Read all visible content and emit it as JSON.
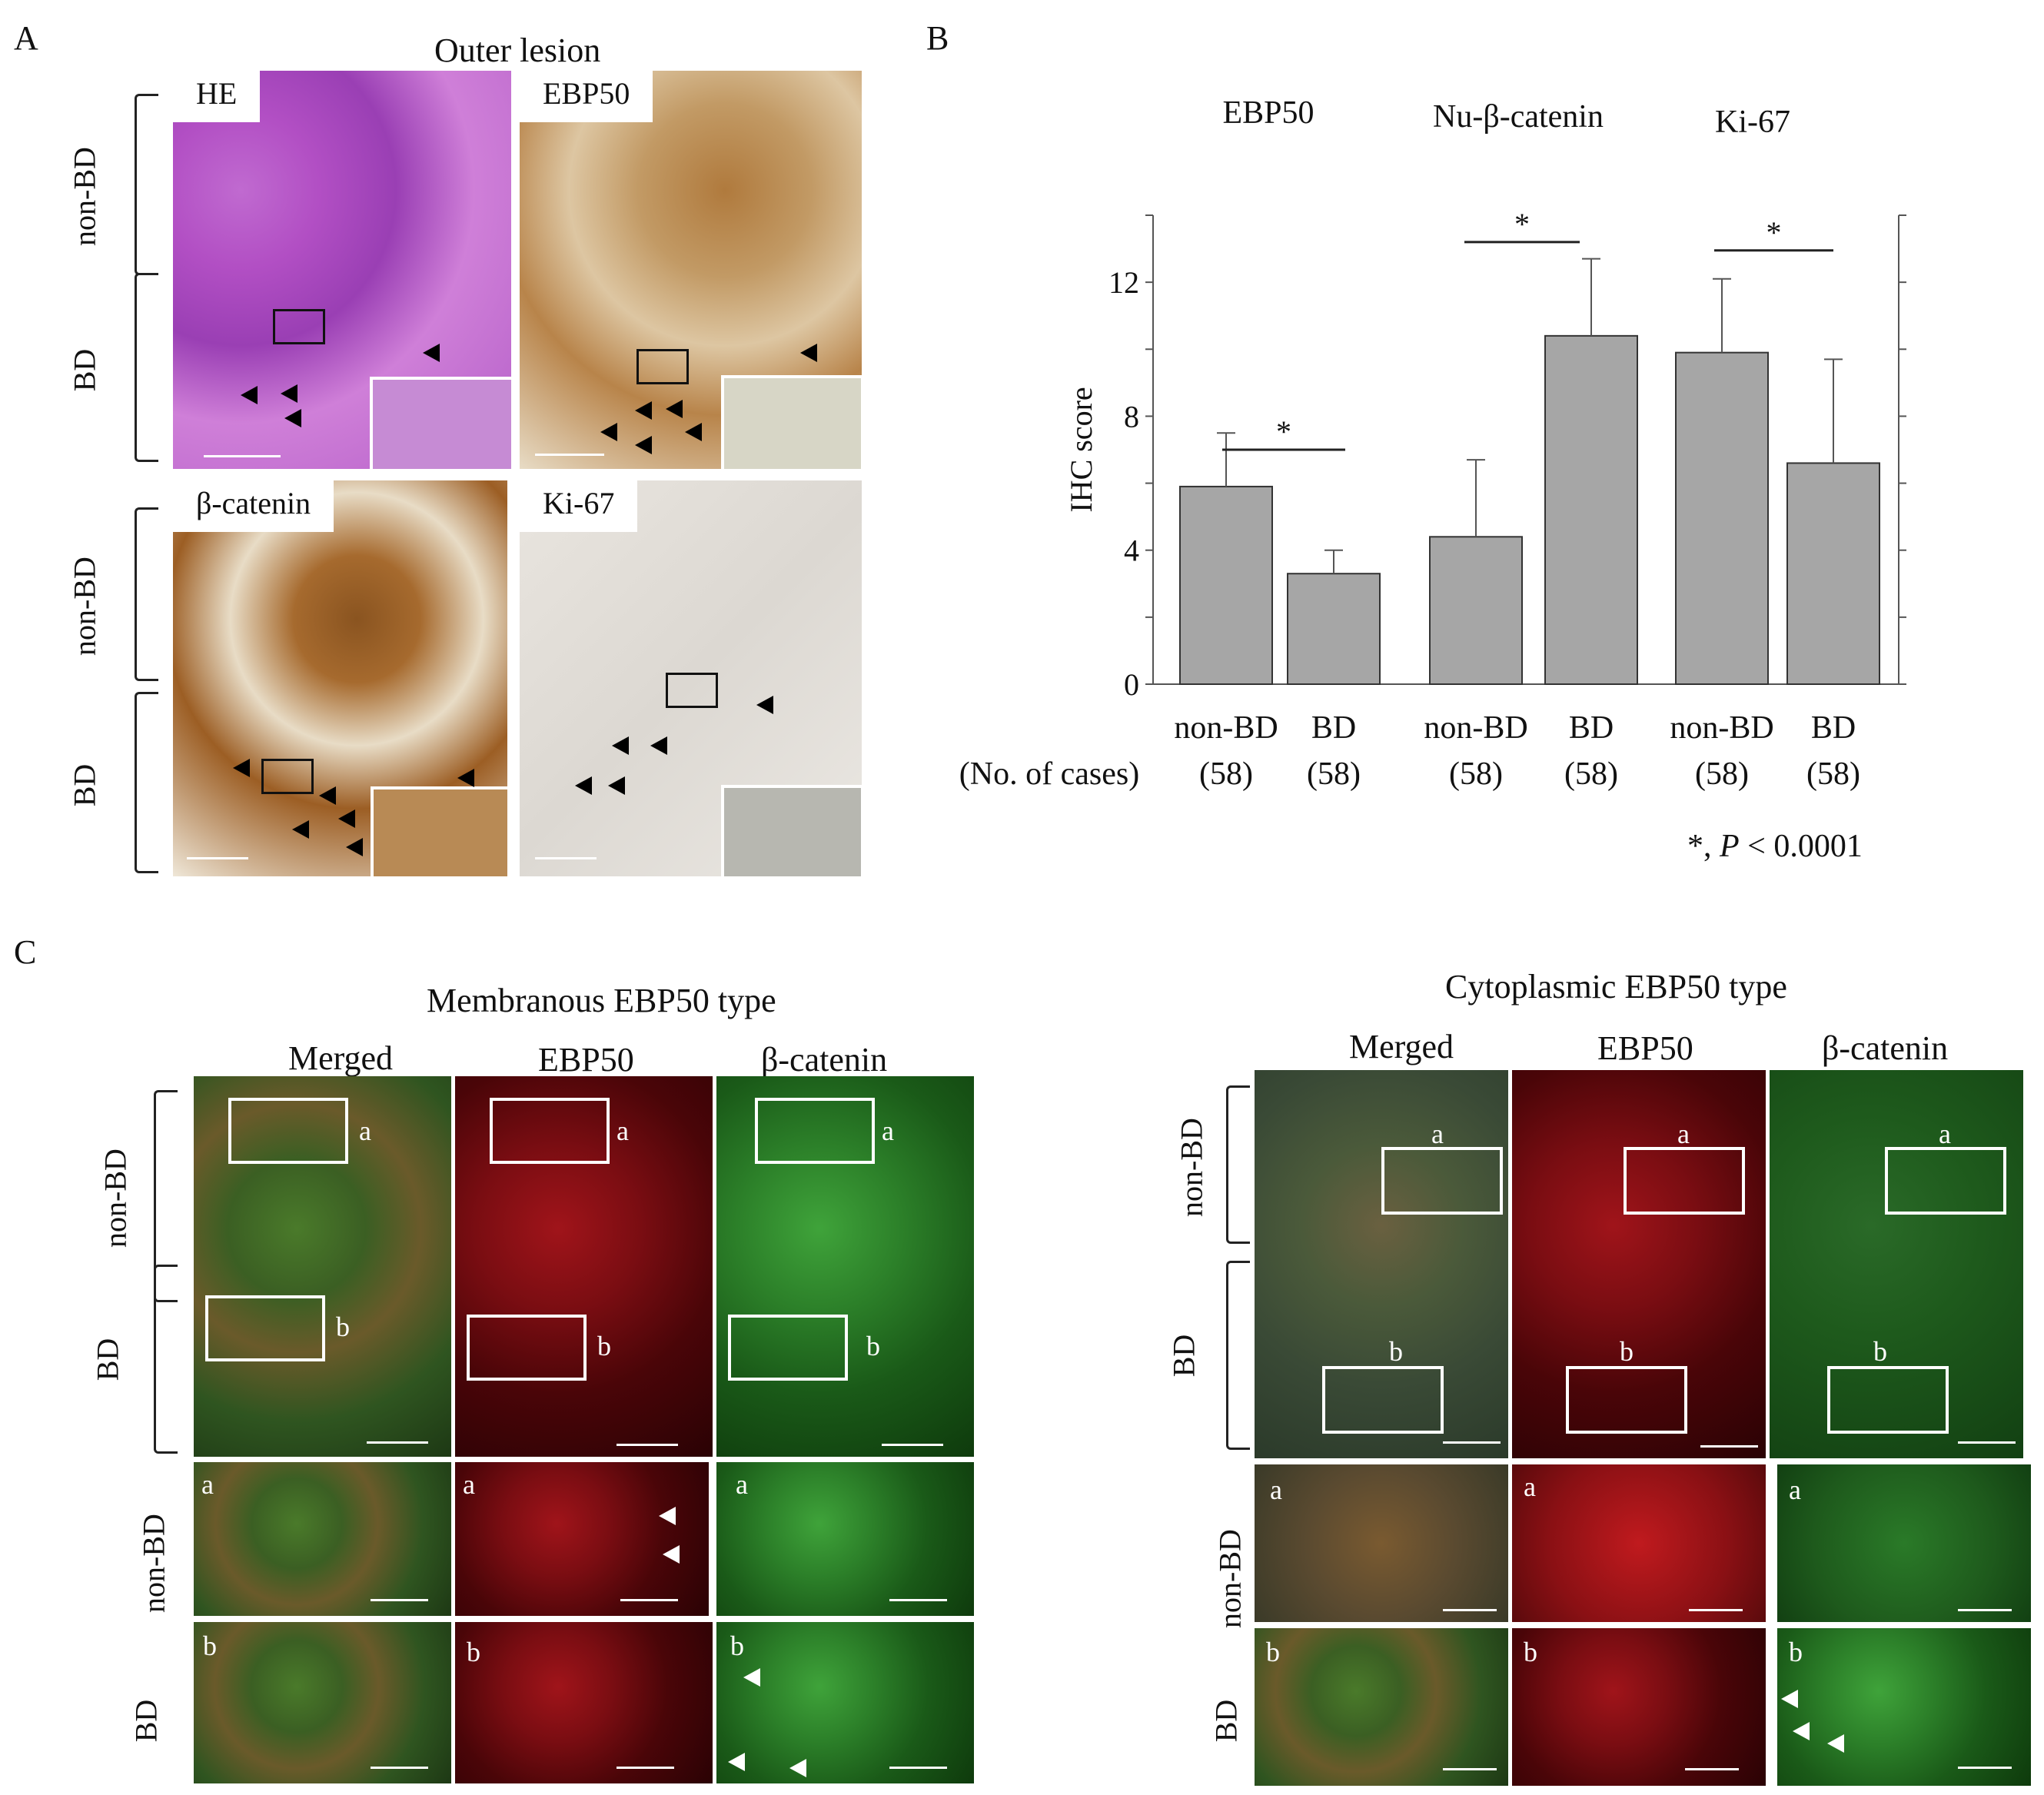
{
  "panelA": {
    "letter": "A",
    "title": "Outer lesion",
    "row_labels": [
      "non-BD",
      "BD",
      "non-BD",
      "BD"
    ],
    "tiles": [
      "HE",
      "EBP50",
      "β-catenin",
      "Ki-67"
    ]
  },
  "panelB": {
    "letter": "B",
    "footnote_star": "*, ",
    "footnote_p": "P",
    "footnote_rest": " < 0.0001",
    "cases_label": "(No. of cases)"
  },
  "chart_data": {
    "type": "bar",
    "ylabel": "IHC score",
    "ylim": [
      0,
      14
    ],
    "yticks": [
      0,
      4,
      8,
      12
    ],
    "groups": [
      "EBP50",
      "Nu-β-catenin",
      "Ki-67"
    ],
    "categories": [
      "non-BD",
      "BD",
      "non-BD",
      "BD",
      "non-BD",
      "BD"
    ],
    "counts": [
      "(58)",
      "(58)",
      "(58)",
      "(58)",
      "(58)",
      "(58)"
    ],
    "values": [
      5.9,
      3.3,
      4.4,
      10.4,
      9.9,
      6.6
    ],
    "errors": [
      1.6,
      0.7,
      2.3,
      2.3,
      2.2,
      3.1
    ],
    "significance": [
      "*",
      "*",
      "*"
    ]
  },
  "panelC": {
    "letter": "C",
    "left_title": "Membranous EBP50 type",
    "right_title": "Cytoplasmic EBP50 type",
    "columns": [
      "Merged",
      "EBP50",
      "β-catenin"
    ],
    "row_labels": [
      "non-BD",
      "BD",
      "non-BD",
      "BD"
    ],
    "box_labels": [
      "a",
      "b"
    ]
  }
}
